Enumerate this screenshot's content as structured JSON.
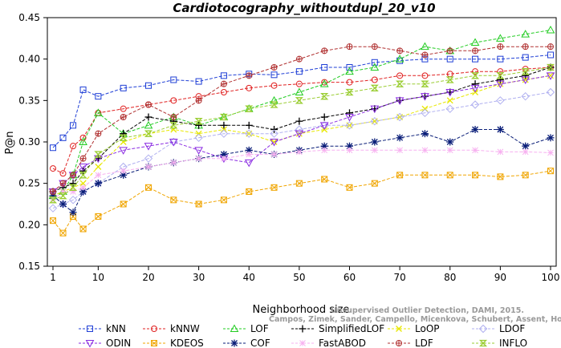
{
  "chart_data": {
    "type": "line",
    "title": "Cardiotocography_withoutdupl_20_v10",
    "xlabel": "Neighborhood size",
    "ylabel": "P@n",
    "xlim": [
      1,
      100
    ],
    "ylim": [
      0.15,
      0.45
    ],
    "x_ticks": [
      "1",
      "10",
      "20",
      "30",
      "40",
      "50",
      "60",
      "70",
      "80",
      "90",
      "100"
    ],
    "y_ticks": [
      "0.15",
      "0.20",
      "0.25",
      "0.30",
      "0.35",
      "0.40",
      "0.45"
    ],
    "grid": false,
    "legend_position": "bottom",
    "watermark": [
      "Unsupervised Outlier Detection, DAMI, 2015.",
      "Campos, Zimek, Sander, Campello, Micenkova, Schubert, Assent, Houle"
    ],
    "series": [
      {
        "name": "kNN",
        "color": "#1f3fd6",
        "marker": "square",
        "x": [
          1,
          3,
          5,
          7,
          10,
          15,
          20,
          25,
          30,
          35,
          40,
          45,
          50,
          55,
          60,
          65,
          70,
          75,
          80,
          85,
          90,
          95,
          100
        ],
        "values": [
          0.293,
          0.305,
          0.32,
          0.363,
          0.355,
          0.365,
          0.368,
          0.375,
          0.373,
          0.38,
          0.382,
          0.381,
          0.385,
          0.39,
          0.39,
          0.396,
          0.398,
          0.4,
          0.4,
          0.4,
          0.4,
          0.402,
          0.405
        ]
      },
      {
        "name": "kNNW",
        "color": "#e02020",
        "marker": "circle",
        "x": [
          1,
          3,
          5,
          7,
          10,
          15,
          20,
          25,
          30,
          35,
          40,
          45,
          50,
          55,
          60,
          65,
          70,
          75,
          80,
          85,
          90,
          95,
          100
        ],
        "values": [
          0.268,
          0.262,
          0.295,
          0.305,
          0.335,
          0.34,
          0.345,
          0.35,
          0.355,
          0.36,
          0.365,
          0.368,
          0.37,
          0.372,
          0.372,
          0.375,
          0.38,
          0.38,
          0.382,
          0.385,
          0.385,
          0.388,
          0.39
        ]
      },
      {
        "name": "LOF",
        "color": "#22cc22",
        "marker": "triangle-up",
        "x": [
          1,
          3,
          5,
          7,
          10,
          15,
          20,
          25,
          30,
          35,
          40,
          45,
          50,
          55,
          60,
          65,
          70,
          75,
          80,
          85,
          90,
          95,
          100
        ],
        "values": [
          0.235,
          0.24,
          0.26,
          0.3,
          0.335,
          0.31,
          0.32,
          0.33,
          0.32,
          0.33,
          0.34,
          0.35,
          0.36,
          0.37,
          0.385,
          0.39,
          0.4,
          0.415,
          0.41,
          0.42,
          0.425,
          0.43,
          0.435
        ]
      },
      {
        "name": "SimplifiedLOF",
        "color": "#000000",
        "marker": "plus",
        "x": [
          1,
          3,
          5,
          7,
          10,
          15,
          20,
          25,
          30,
          35,
          40,
          45,
          50,
          55,
          60,
          65,
          70,
          75,
          80,
          85,
          90,
          95,
          100
        ],
        "values": [
          0.24,
          0.245,
          0.25,
          0.265,
          0.28,
          0.31,
          0.33,
          0.325,
          0.32,
          0.32,
          0.32,
          0.315,
          0.325,
          0.33,
          0.335,
          0.34,
          0.35,
          0.355,
          0.36,
          0.37,
          0.375,
          0.38,
          0.39
        ]
      },
      {
        "name": "LoOP",
        "color": "#e8e800",
        "marker": "x",
        "x": [
          1,
          3,
          5,
          7,
          10,
          15,
          20,
          25,
          30,
          35,
          40,
          45,
          50,
          55,
          60,
          65,
          70,
          75,
          80,
          85,
          90,
          95,
          100
        ],
        "values": [
          0.235,
          0.24,
          0.245,
          0.25,
          0.27,
          0.3,
          0.31,
          0.315,
          0.31,
          0.315,
          0.31,
          0.3,
          0.31,
          0.315,
          0.32,
          0.325,
          0.33,
          0.34,
          0.35,
          0.36,
          0.37,
          0.375,
          0.38
        ]
      },
      {
        "name": "LDOF",
        "color": "#b0b0f0",
        "marker": "diamond",
        "x": [
          1,
          3,
          5,
          7,
          10,
          15,
          20,
          25,
          30,
          35,
          40,
          45,
          50,
          55,
          60,
          65,
          70,
          75,
          80,
          85,
          90,
          95,
          100
        ],
        "values": [
          0.22,
          0.225,
          0.23,
          0.24,
          0.25,
          0.27,
          0.28,
          0.3,
          0.305,
          0.31,
          0.31,
          0.31,
          0.315,
          0.32,
          0.32,
          0.325,
          0.33,
          0.335,
          0.34,
          0.345,
          0.35,
          0.355,
          0.36
        ]
      },
      {
        "name": "ODIN",
        "color": "#8a2be2",
        "marker": "triangle-down",
        "x": [
          1,
          3,
          5,
          7,
          10,
          15,
          20,
          25,
          30,
          35,
          40,
          45,
          50,
          55,
          60,
          65,
          70,
          75,
          80,
          85,
          90,
          95,
          100
        ],
        "values": [
          0.24,
          0.25,
          0.26,
          0.27,
          0.28,
          0.29,
          0.295,
          0.3,
          0.29,
          0.28,
          0.275,
          0.3,
          0.31,
          0.32,
          0.33,
          0.34,
          0.35,
          0.355,
          0.36,
          0.365,
          0.37,
          0.375,
          0.38
        ]
      },
      {
        "name": "KDEOS",
        "color": "#f0a500",
        "marker": "square-x",
        "x": [
          1,
          3,
          5,
          7,
          10,
          15,
          20,
          25,
          30,
          35,
          40,
          45,
          50,
          55,
          60,
          65,
          70,
          75,
          80,
          85,
          90,
          95,
          100
        ],
        "values": [
          0.205,
          0.19,
          0.21,
          0.195,
          0.21,
          0.225,
          0.245,
          0.23,
          0.225,
          0.23,
          0.24,
          0.245,
          0.25,
          0.255,
          0.245,
          0.25,
          0.26,
          0.26,
          0.26,
          0.26,
          0.258,
          0.26,
          0.265
        ]
      },
      {
        "name": "COF",
        "color": "#0a1e78",
        "marker": "asterisk",
        "x": [
          1,
          3,
          5,
          7,
          10,
          15,
          20,
          25,
          30,
          35,
          40,
          45,
          50,
          55,
          60,
          65,
          70,
          75,
          80,
          85,
          90,
          95,
          100
        ],
        "values": [
          0.235,
          0.225,
          0.215,
          0.24,
          0.25,
          0.26,
          0.27,
          0.275,
          0.28,
          0.285,
          0.29,
          0.285,
          0.29,
          0.295,
          0.295,
          0.3,
          0.305,
          0.31,
          0.3,
          0.315,
          0.315,
          0.295,
          0.305
        ]
      },
      {
        "name": "FastABOD",
        "color": "#f7b0f0",
        "marker": "star",
        "x": [
          1,
          3,
          5,
          7,
          10,
          15,
          20,
          25,
          30,
          35,
          40,
          45,
          50,
          55,
          60,
          65,
          70,
          75,
          80,
          85,
          90,
          95,
          100
        ],
        "values": [
          0.23,
          0.24,
          0.24,
          0.245,
          0.26,
          0.265,
          0.27,
          0.275,
          0.28,
          0.28,
          0.285,
          0.285,
          0.288,
          0.29,
          0.29,
          0.29,
          0.29,
          0.29,
          0.29,
          0.29,
          0.288,
          0.288,
          0.287
        ]
      },
      {
        "name": "LDF",
        "color": "#b03030",
        "marker": "circle-plus",
        "x": [
          1,
          3,
          5,
          7,
          10,
          15,
          20,
          25,
          30,
          35,
          40,
          45,
          50,
          55,
          60,
          65,
          70,
          75,
          80,
          85,
          90,
          95,
          100
        ],
        "values": [
          0.24,
          0.25,
          0.26,
          0.28,
          0.31,
          0.33,
          0.345,
          0.33,
          0.35,
          0.37,
          0.38,
          0.39,
          0.4,
          0.41,
          0.415,
          0.415,
          0.41,
          0.405,
          0.41,
          0.41,
          0.415,
          0.415,
          0.415
        ]
      },
      {
        "name": "INFLO",
        "color": "#9acd32",
        "marker": "hourglass",
        "x": [
          1,
          3,
          5,
          7,
          10,
          15,
          20,
          25,
          30,
          35,
          40,
          45,
          50,
          55,
          60,
          65,
          70,
          75,
          80,
          85,
          90,
          95,
          100
        ],
        "values": [
          0.23,
          0.235,
          0.245,
          0.26,
          0.285,
          0.305,
          0.31,
          0.32,
          0.325,
          0.33,
          0.34,
          0.345,
          0.35,
          0.355,
          0.36,
          0.365,
          0.37,
          0.37,
          0.375,
          0.38,
          0.38,
          0.385,
          0.39
        ]
      }
    ]
  }
}
